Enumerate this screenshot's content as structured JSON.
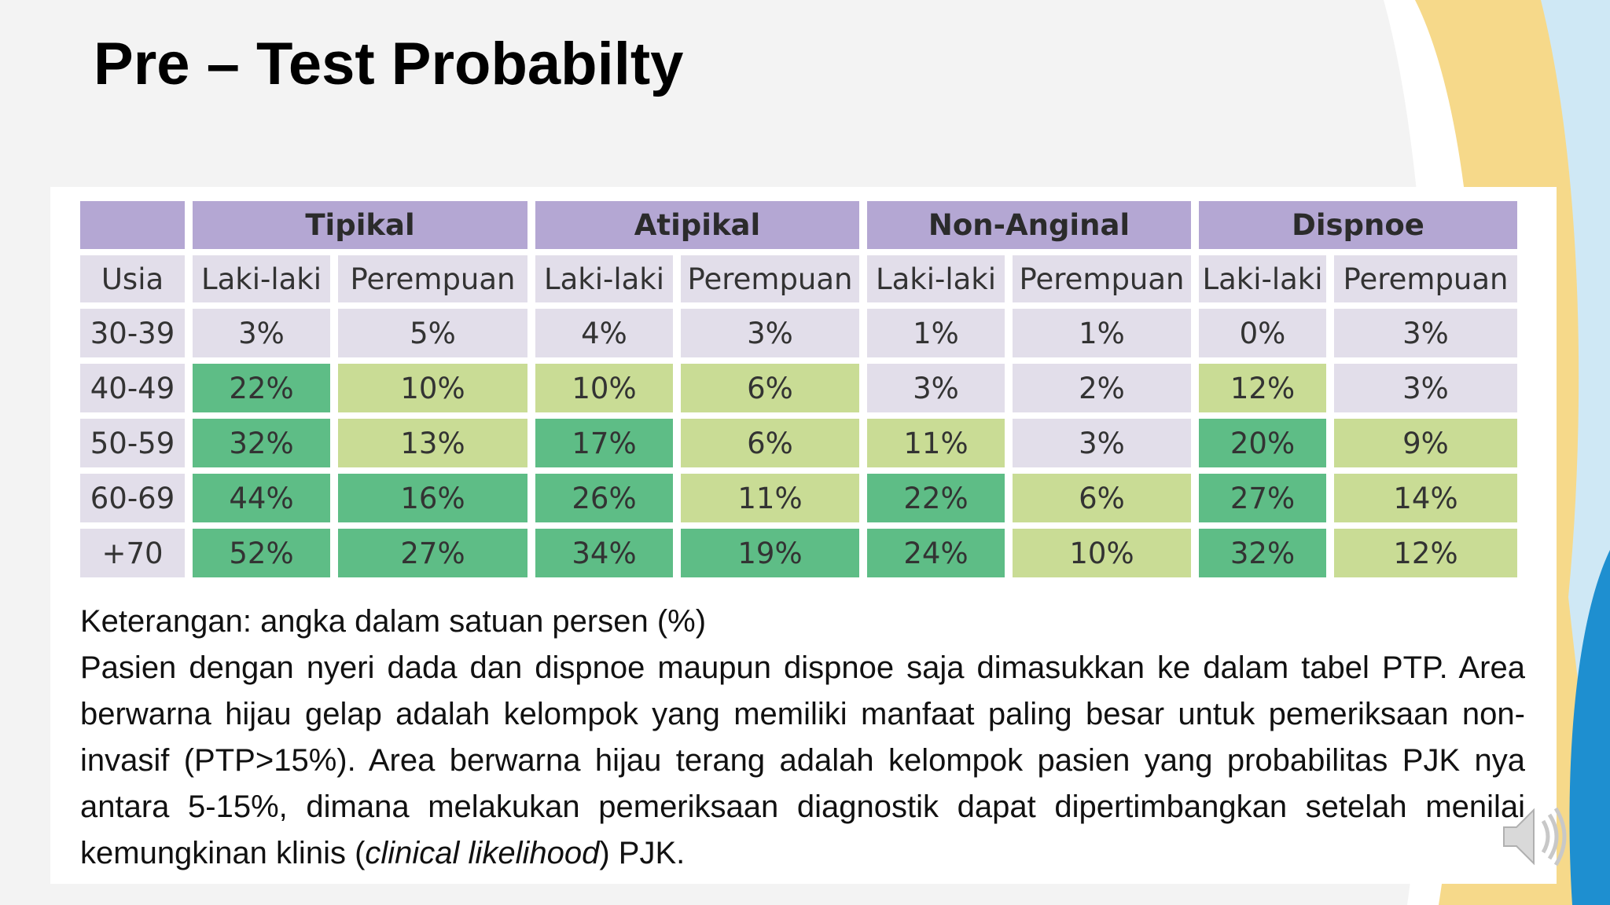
{
  "title": "Pre – Test Probabilty",
  "table": {
    "header_fill": "#b4a7d3",
    "groups": [
      "Tipikal",
      "Atipikal",
      "Non-Anginal",
      "Dispnoe"
    ],
    "columns": [
      "Usia",
      "Laki-laki",
      "Perempuan",
      "Laki-laki",
      "Perempuan",
      "Laki-laki",
      "Perempuan",
      "Laki-laki",
      "Perempuan"
    ],
    "column_fill": "#e2deea",
    "rows": [
      {
        "cells": [
          "30-39",
          "3%",
          "5%",
          "4%",
          "3%",
          "1%",
          "1%",
          "0%",
          "3%"
        ],
        "fills": [
          "#e2deea",
          "#e2deea",
          "#e2deea",
          "#e2deea",
          "#e2deea",
          "#e2deea",
          "#e2deea",
          "#e2deea",
          "#e2deea"
        ]
      },
      {
        "cells": [
          "40-49",
          "22%",
          "10%",
          "10%",
          "6%",
          "3%",
          "2%",
          "12%",
          "3%"
        ],
        "fills": [
          "#e2deea",
          "#5ebd86",
          "#c9dc95",
          "#c9dc95",
          "#c9dc95",
          "#e2deea",
          "#e2deea",
          "#c9dc95",
          "#e2deea"
        ]
      },
      {
        "cells": [
          "50-59",
          "32%",
          "13%",
          "17%",
          "6%",
          "11%",
          "3%",
          "20%",
          "9%"
        ],
        "fills": [
          "#e2deea",
          "#5ebd86",
          "#c9dc95",
          "#5ebd86",
          "#c9dc95",
          "#c9dc95",
          "#e2deea",
          "#5ebd86",
          "#c9dc95"
        ]
      },
      {
        "cells": [
          "60-69",
          "44%",
          "16%",
          "26%",
          "11%",
          "22%",
          "6%",
          "27%",
          "14%"
        ],
        "fills": [
          "#e2deea",
          "#5ebd86",
          "#5ebd86",
          "#5ebd86",
          "#c9dc95",
          "#5ebd86",
          "#c9dc95",
          "#5ebd86",
          "#c9dc95"
        ]
      },
      {
        "cells": [
          "+70",
          "52%",
          "27%",
          "34%",
          "19%",
          "24%",
          "10%",
          "32%",
          "12%"
        ],
        "fills": [
          "#e2deea",
          "#5ebd86",
          "#5ebd86",
          "#5ebd86",
          "#5ebd86",
          "#5ebd86",
          "#c9dc95",
          "#5ebd86",
          "#c9dc95"
        ]
      }
    ]
  },
  "notes": {
    "caption": "Keterangan: angka dalam satuan persen (%)",
    "paragraph": [
      "Pasien dengan nyeri dada dan dispnoe maupun dispnoe saja dimasukkan ke dalam tabel PTP. Area berwarna hijau gelap adalah kelompok yang memiliki manfaat paling besar untuk pemeriksaan non-invasif (PTP>15%). Area berwarna hijau terang adalah kelompok pasien yang probabilitas PJK nya antara 5-15%, dimana melakukan pemeriksaan diagnostik dapat dipertimbangkan setelah menilai kemungkinan klinis (",
      "clinical likelihood",
      ") PJK."
    ]
  }
}
